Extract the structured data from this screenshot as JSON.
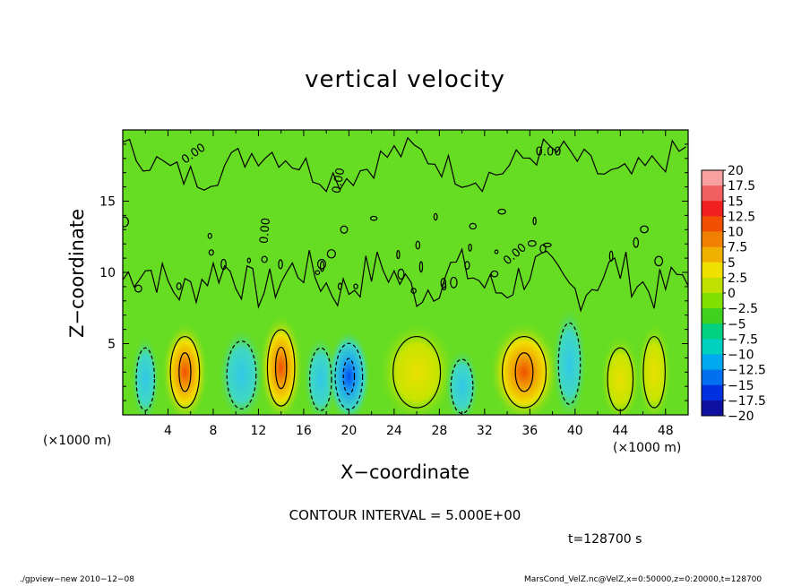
{
  "title": "vertical velocity",
  "xlabel": "X−coordinate",
  "ylabel": "Z−coordinate",
  "x_unit_left": "(×1000 m)",
  "x_unit_right": "(×1000 m)",
  "contour_interval": "CONTOUR INTERVAL = 5.000E+00",
  "time_label": "t=128700 s",
  "footer_left": "./gpview−new   2010−12−08",
  "footer_right": "MarsCond_VelZ.nc@VelZ,x=0:50000,z=0:20000,t=128700",
  "chart_data": {
    "type": "heatmap",
    "title": "vertical velocity",
    "xlabel": "X−coordinate",
    "ylabel": "Z−coordinate",
    "x_unit": "(×1000 m)",
    "xlim": [
      0,
      50
    ],
    "ylim": [
      0,
      20
    ],
    "x_ticks": [
      4,
      8,
      12,
      16,
      20,
      24,
      28,
      32,
      36,
      40,
      44,
      48
    ],
    "y_ticks": [
      5,
      10,
      15
    ],
    "contour_interval": 5.0,
    "contour_labels": [
      "0.00",
      "0.00",
      "0.00",
      "0.00",
      "0.00"
    ],
    "colorbar": {
      "levels": [
        "20",
        "17.5",
        "15",
        "12.5",
        "10",
        "7.5",
        "5",
        "2.5",
        "0",
        "−2.5",
        "−5",
        "−7.5",
        "−10",
        "−12.5",
        "−15",
        "−17.5",
        "−20"
      ],
      "colors": [
        "#f6a0a0",
        "#f06060",
        "#f02020",
        "#f05000",
        "#f08000",
        "#f0b000",
        "#f0e000",
        "#c0e000",
        "#80e000",
        "#40d020",
        "#00d080",
        "#00d0c0",
        "#00a8f0",
        "#0070f0",
        "#0030e0",
        "#1010a0",
        "#4010a0"
      ]
    },
    "cells": [
      {
        "x": 2.0,
        "z": 2.5,
        "w": 1.0,
        "value": -5
      },
      {
        "x": 5.5,
        "z": 3.0,
        "w": 1.6,
        "value": 12.5
      },
      {
        "x": 10.5,
        "z": 2.8,
        "w": 1.6,
        "value": -6
      },
      {
        "x": 14.0,
        "z": 3.3,
        "w": 1.5,
        "value": 10
      },
      {
        "x": 17.5,
        "z": 2.5,
        "w": 1.2,
        "value": -3
      },
      {
        "x": 20.0,
        "z": 2.7,
        "w": 1.5,
        "value": -10
      },
      {
        "x": 26.0,
        "z": 3.0,
        "w": 2.6,
        "value": 5
      },
      {
        "x": 30.0,
        "z": 2.0,
        "w": 1.2,
        "value": -3
      },
      {
        "x": 35.5,
        "z": 3.0,
        "w": 2.4,
        "value": 12.5
      },
      {
        "x": 39.5,
        "z": 3.6,
        "w": 1.2,
        "value": -6
      },
      {
        "x": 44.0,
        "z": 2.5,
        "w": 1.4,
        "value": 3
      },
      {
        "x": 47.0,
        "z": 3.0,
        "w": 1.2,
        "value": 4
      }
    ]
  }
}
